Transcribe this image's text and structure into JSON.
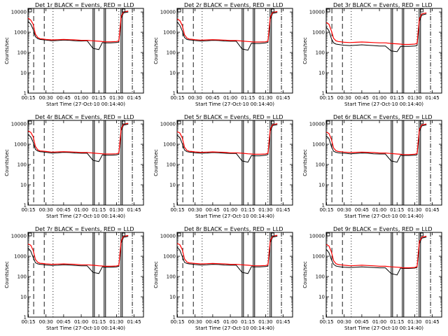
{
  "figure": {
    "xlabel": "Start Time (27-Oct-10 00:14:40)",
    "ylabel": "Counts/sec"
  },
  "axis": {
    "x_tick_labels": [
      "00:15",
      "00:30",
      "00:45",
      "01:00",
      "01:15",
      "01:30",
      "01:45"
    ],
    "y_tick_labels": [
      "1",
      "10",
      "100",
      "1000",
      "10000"
    ],
    "x_range_minutes": [
      14.67,
      113.0
    ],
    "y_range_log": [
      1,
      15000
    ],
    "y_scale": "log",
    "grid": false
  },
  "colors": {
    "events": "#000000",
    "lld": "#ff0000"
  },
  "chart_data": [
    {
      "type": "line",
      "title": "Det 1r BLACK = Events, RED = LLD",
      "xlabel": "Start Time (27-Oct-10 00:14:40)",
      "ylabel": "Counts/sec",
      "x": [
        14.7,
        17,
        19,
        21,
        23,
        25,
        27,
        30,
        35,
        40,
        45,
        50,
        55,
        60,
        65,
        70,
        75,
        78,
        80,
        85,
        90,
        92,
        94,
        96,
        100
      ],
      "series": [
        {
          "name": "Events",
          "values": [
            3500,
            2500,
            1400,
            600,
            480,
            440,
            430,
            410,
            380,
            390,
            410,
            400,
            380,
            370,
            380,
            160,
            140,
            310,
            300,
            300,
            310,
            330,
            5000,
            9000,
            10000
          ]
        },
        {
          "name": "LLD",
          "values": [
            5000,
            4000,
            2500,
            800,
            550,
            480,
            470,
            440,
            420,
            430,
            440,
            430,
            420,
            400,
            400,
            380,
            360,
            350,
            340,
            340,
            350,
            380,
            6000,
            10000,
            11000
          ]
        }
      ]
    },
    {
      "type": "line",
      "title": "Det 2r BLACK = Events, RED = LLD",
      "xlabel": "Start Time (27-Oct-10 00:14:40)",
      "ylabel": "Counts/sec",
      "x": [
        14.7,
        17,
        19,
        21,
        23,
        25,
        27,
        30,
        35,
        40,
        45,
        50,
        55,
        60,
        65,
        70,
        75,
        78,
        80,
        85,
        90,
        92,
        94,
        96,
        100
      ],
      "series": [
        {
          "name": "Events",
          "values": [
            3200,
            2200,
            1200,
            550,
            440,
            420,
            410,
            390,
            370,
            380,
            400,
            390,
            370,
            360,
            360,
            150,
            130,
            290,
            280,
            280,
            300,
            320,
            4500,
            8500,
            9500
          ]
        },
        {
          "name": "LLD",
          "values": [
            4500,
            3800,
            2200,
            750,
            520,
            460,
            450,
            430,
            410,
            420,
            430,
            420,
            410,
            390,
            390,
            370,
            350,
            340,
            330,
            330,
            340,
            370,
            5500,
            9500,
            10500
          ]
        }
      ]
    },
    {
      "type": "line",
      "title": "Det 3r BLACK = Events, RED = LLD",
      "xlabel": "Start Time (27-Oct-10 00:14:40)",
      "ylabel": "Counts/sec",
      "x": [
        14.7,
        17,
        19,
        21,
        23,
        25,
        27,
        30,
        35,
        40,
        45,
        50,
        55,
        60,
        65,
        70,
        75,
        78,
        80,
        85,
        90,
        92,
        94,
        96,
        100
      ],
      "series": [
        {
          "name": "Events",
          "values": [
            1800,
            1200,
            500,
            300,
            260,
            250,
            240,
            230,
            220,
            230,
            240,
            230,
            220,
            210,
            210,
            120,
            110,
            200,
            200,
            200,
            210,
            220,
            3500,
            7000,
            8000
          ]
        },
        {
          "name": "LLD",
          "values": [
            3000,
            2500,
            1200,
            500,
            380,
            350,
            340,
            320,
            310,
            320,
            330,
            320,
            310,
            300,
            300,
            280,
            270,
            260,
            250,
            250,
            260,
            280,
            4500,
            8000,
            9000
          ]
        }
      ]
    },
    {
      "type": "line",
      "title": "Det 4r BLACK = Events, RED = LLD",
      "xlabel": "Start Time (27-Oct-10 00:14:40)",
      "ylabel": "Counts/sec",
      "x": [
        14.7,
        17,
        19,
        21,
        23,
        25,
        27,
        30,
        35,
        40,
        45,
        50,
        55,
        60,
        65,
        70,
        75,
        78,
        80,
        85,
        90,
        92,
        94,
        96,
        100
      ],
      "series": [
        {
          "name": "Events",
          "values": [
            3000,
            2300,
            1300,
            560,
            460,
            430,
            420,
            400,
            370,
            380,
            400,
            390,
            370,
            360,
            360,
            160,
            140,
            300,
            290,
            290,
            300,
            320,
            4800,
            8800,
            9800
          ]
        },
        {
          "name": "LLD",
          "values": [
            4500,
            3900,
            2400,
            780,
            530,
            470,
            460,
            440,
            410,
            420,
            430,
            420,
            410,
            390,
            390,
            370,
            350,
            340,
            330,
            330,
            340,
            370,
            5800,
            9800,
            10800
          ]
        }
      ]
    },
    {
      "type": "line",
      "title": "Det 5r BLACK = Events, RED = LLD",
      "xlabel": "Start Time (27-Oct-10 00:14:40)",
      "ylabel": "Counts/sec",
      "x": [
        14.7,
        17,
        19,
        21,
        23,
        25,
        27,
        30,
        35,
        40,
        45,
        50,
        55,
        60,
        65,
        70,
        75,
        78,
        80,
        85,
        90,
        92,
        94,
        96,
        100
      ],
      "series": [
        {
          "name": "Events",
          "values": [
            2800,
            2100,
            1100,
            520,
            430,
            410,
            400,
            380,
            360,
            370,
            390,
            380,
            360,
            350,
            350,
            150,
            130,
            280,
            270,
            270,
            290,
            310,
            4500,
            8300,
            9300
          ]
        },
        {
          "name": "LLD",
          "values": [
            4200,
            3600,
            2100,
            720,
            500,
            450,
            440,
            420,
            400,
            410,
            420,
            410,
            400,
            380,
            380,
            360,
            340,
            330,
            320,
            320,
            330,
            360,
            5500,
            9300,
            10300
          ]
        }
      ]
    },
    {
      "type": "line",
      "title": "Det 6r BLACK = Events, RED = LLD",
      "xlabel": "Start Time (27-Oct-10 00:14:40)",
      "ylabel": "Counts/sec",
      "x": [
        14.7,
        17,
        19,
        21,
        23,
        25,
        27,
        30,
        35,
        40,
        45,
        50,
        55,
        60,
        65,
        70,
        75,
        78,
        80,
        85,
        90,
        92,
        94,
        96,
        100
      ],
      "series": [
        {
          "name": "Events",
          "values": [
            2600,
            1900,
            800,
            450,
            400,
            380,
            370,
            360,
            340,
            350,
            370,
            360,
            340,
            330,
            330,
            150,
            130,
            290,
            280,
            280,
            290,
            300,
            4300,
            8000,
            9000
          ]
        },
        {
          "name": "LLD",
          "values": [
            4000,
            3400,
            1800,
            650,
            480,
            440,
            430,
            410,
            390,
            400,
            410,
            400,
            390,
            370,
            370,
            350,
            330,
            320,
            310,
            310,
            320,
            350,
            5300,
            9000,
            10000
          ]
        }
      ]
    },
    {
      "type": "line",
      "title": "Det 7r BLACK = Events, RED = LLD",
      "xlabel": "Start Time (27-Oct-10 00:14:40)",
      "ylabel": "Counts/sec",
      "x": [
        14.7,
        17,
        19,
        21,
        23,
        25,
        27,
        30,
        35,
        40,
        45,
        50,
        55,
        60,
        65,
        70,
        75,
        78,
        80,
        85,
        90,
        92,
        94,
        96,
        100
      ],
      "series": [
        {
          "name": "Events",
          "values": [
            2500,
            1800,
            900,
            480,
            420,
            400,
            390,
            370,
            350,
            360,
            380,
            370,
            350,
            340,
            340,
            160,
            140,
            300,
            290,
            290,
            300,
            320,
            4600,
            8600,
            9600
          ]
        },
        {
          "name": "LLD",
          "values": [
            4000,
            3500,
            2000,
            700,
            500,
            450,
            440,
            420,
            400,
            410,
            420,
            410,
            400,
            380,
            380,
            360,
            340,
            330,
            320,
            320,
            330,
            360,
            5600,
            9600,
            10600
          ]
        }
      ]
    },
    {
      "type": "line",
      "title": "Det 8r BLACK = Events, RED = LLD",
      "xlabel": "Start Time (27-Oct-10 00:14:40)",
      "ylabel": "Counts/sec",
      "x": [
        14.7,
        17,
        19,
        21,
        23,
        25,
        27,
        30,
        35,
        40,
        45,
        50,
        55,
        60,
        65,
        70,
        75,
        78,
        80,
        85,
        90,
        92,
        94,
        96,
        100
      ],
      "series": [
        {
          "name": "Events",
          "values": [
            2800,
            2000,
            1000,
            500,
            440,
            420,
            410,
            390,
            370,
            380,
            400,
            390,
            370,
            360,
            360,
            160,
            140,
            310,
            300,
            300,
            310,
            330,
            4800,
            8800,
            9800
          ]
        },
        {
          "name": "LLD",
          "values": [
            4300,
            3700,
            2200,
            740,
            520,
            470,
            460,
            440,
            420,
            430,
            440,
            430,
            420,
            400,
            400,
            380,
            360,
            350,
            340,
            340,
            350,
            380,
            5800,
            9800,
            10800
          ]
        }
      ]
    },
    {
      "type": "line",
      "title": "Det 9r BLACK = Events, RED = LLD",
      "xlabel": "Start Time (27-Oct-10 00:14:40)",
      "ylabel": "Counts/sec",
      "x": [
        14.7,
        17,
        19,
        21,
        23,
        25,
        27,
        30,
        35,
        40,
        45,
        50,
        55,
        60,
        65,
        70,
        75,
        78,
        80,
        85,
        90,
        92,
        94,
        96,
        100
      ],
      "series": [
        {
          "name": "Events",
          "values": [
            2200,
            1500,
            700,
            400,
            330,
            310,
            300,
            290,
            280,
            290,
            300,
            290,
            280,
            270,
            270,
            140,
            120,
            260,
            250,
            250,
            260,
            280,
            4200,
            7800,
            8800
          ]
        },
        {
          "name": "LLD",
          "values": [
            3800,
            3200,
            1700,
            600,
            430,
            390,
            380,
            360,
            340,
            350,
            360,
            350,
            340,
            320,
            320,
            300,
            290,
            280,
            270,
            270,
            280,
            310,
            5200,
            8800,
            9800
          ]
        }
      ]
    }
  ],
  "markers": {
    "dashed_minutes": [
      19.5,
      28.5
    ],
    "dotted_minutes": [
      36.0,
      92.0
    ],
    "solid_minutes": [
      70.0,
      79.5,
      93.8
    ],
    "dashdot_minutes": [
      103.5
    ]
  }
}
